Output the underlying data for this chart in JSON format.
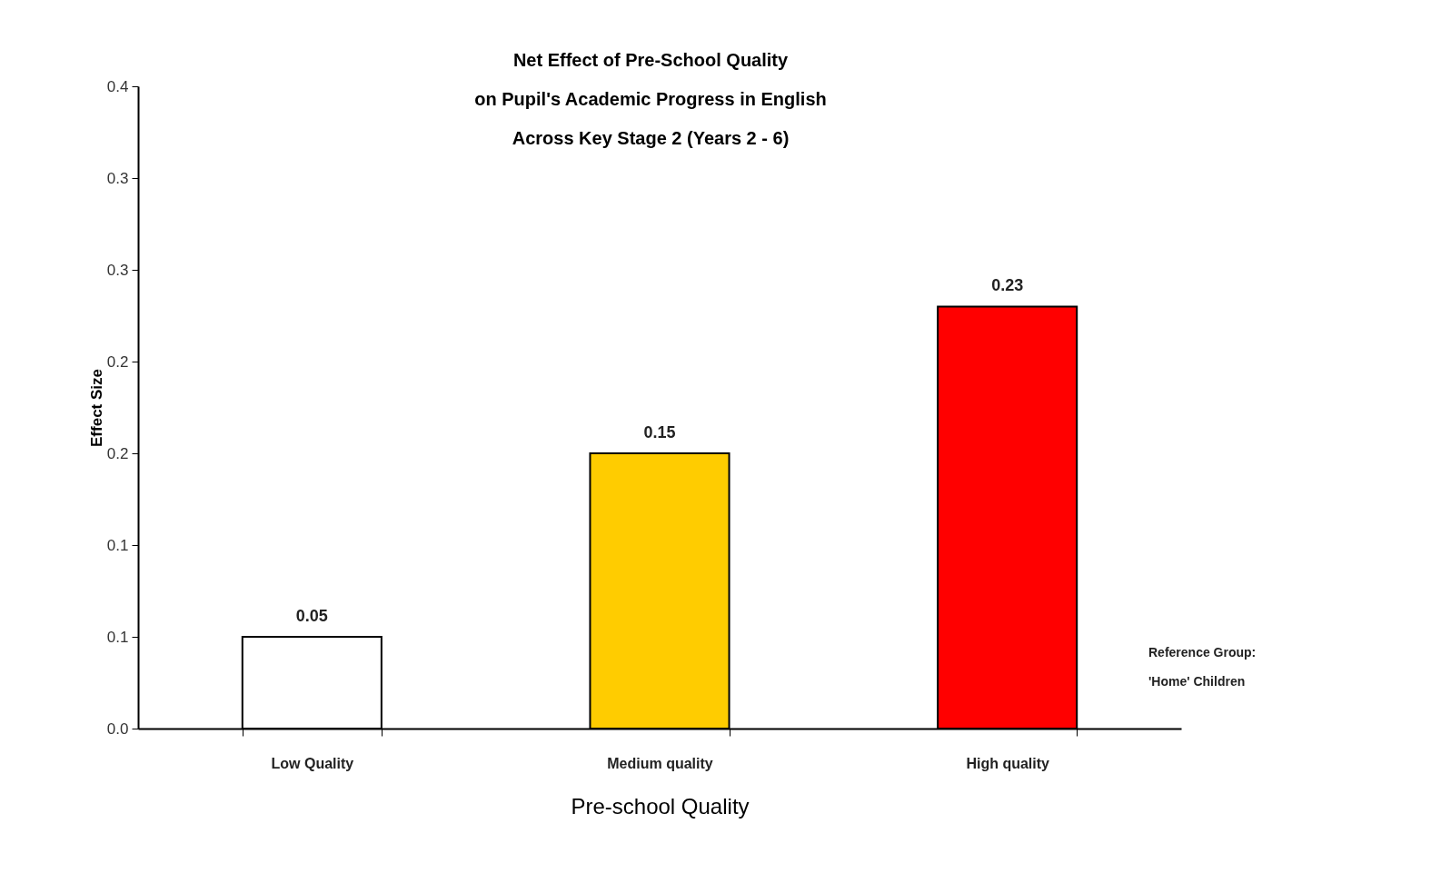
{
  "chart_data": {
    "type": "bar",
    "title": "Net Effect of  Pre-School Quality\non Pupil's Academic Progress in English\nAcross Key Stage 2 (Years 2 - 6)",
    "xlabel": "Pre-school Quality",
    "ylabel": "Effect Size",
    "categories": [
      "Low Quality",
      "Medium quality",
      "High quality"
    ],
    "values": [
      0.05,
      0.15,
      0.23
    ],
    "colors": [
      "#ffffff",
      "#ffcc00",
      "#ff0000"
    ],
    "ylim": [
      0,
      0.35
    ],
    "yticks": [
      {
        "value": 0,
        "label": "0.0"
      },
      {
        "value": 0.05,
        "label": "0.1"
      },
      {
        "value": 0.1,
        "label": "0.1"
      },
      {
        "value": 0.15,
        "label": "0.2"
      },
      {
        "value": 0.2,
        "label": "0.2"
      },
      {
        "value": 0.25,
        "label": "0.3"
      },
      {
        "value": 0.3,
        "label": "0.3"
      },
      {
        "value": 0.35,
        "label": "0.4"
      }
    ],
    "data_labels": true,
    "grid": false,
    "annotations": [
      "Reference Group:\n'Home' Children"
    ]
  }
}
